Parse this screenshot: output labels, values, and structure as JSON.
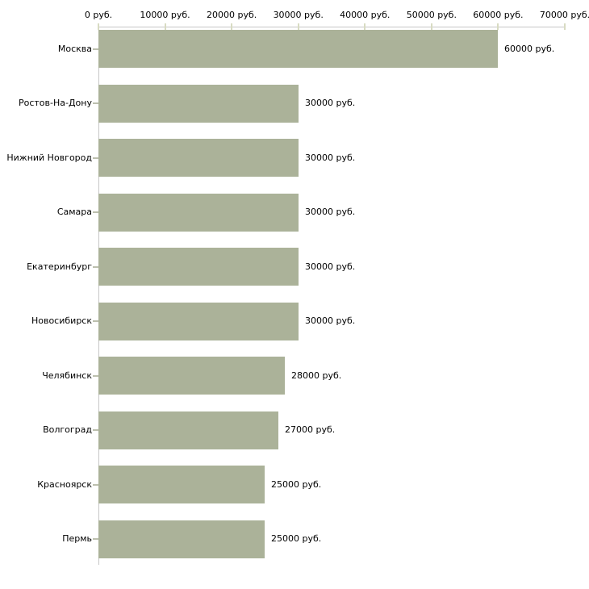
{
  "chart_data": {
    "type": "bar",
    "orientation": "horizontal",
    "title": "",
    "xlabel": "",
    "ylabel": "",
    "unit": "руб.",
    "categories": [
      "Москва",
      "Ростов-На-Дону",
      "Нижний Новгород",
      "Самара",
      "Екатеринбург",
      "Новосибирск",
      "Челябинск",
      "Волгоград",
      "Красноярск",
      "Пермь"
    ],
    "values": [
      60000,
      30000,
      30000,
      30000,
      30000,
      30000,
      28000,
      27000,
      25000,
      25000
    ],
    "value_labels": [
      "60000 руб.",
      "30000 руб.",
      "30000 руб.",
      "30000 руб.",
      "30000 руб.",
      "30000 руб.",
      "28000 руб.",
      "27000 руб.",
      "25000 руб.",
      "25000 руб."
    ],
    "x_ticks": [
      0,
      10000,
      20000,
      30000,
      40000,
      50000,
      60000,
      70000
    ],
    "x_tick_labels": [
      "0 руб.",
      "10000 руб.",
      "20000 руб.",
      "30000 руб.",
      "40000 руб.",
      "50000 руб.",
      "60000 руб.",
      "70000 руб."
    ],
    "xlim": [
      0,
      70000
    ],
    "grid": false,
    "legend_position": "none",
    "colors": {
      "bar": "#abb299",
      "axis_line": "#c6c6c6",
      "x_tick_mark": "#d8dbc2",
      "y_tick_mark": "#bcbfae",
      "label_text": "#000000",
      "background": "#ffffff"
    }
  }
}
